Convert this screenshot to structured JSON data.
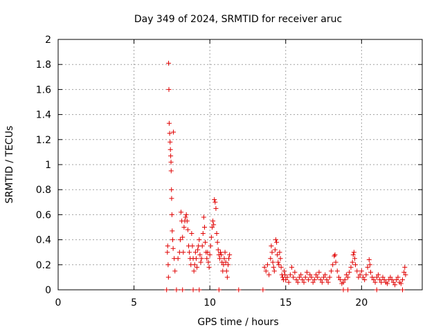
{
  "chart_data": {
    "type": "scatter",
    "title": "Day 349 of 2024, SRMTID for receiver aruc",
    "xlabel": "GPS time / hours",
    "ylabel": "SRMTID / TECUs",
    "xlim": [
      0,
      24
    ],
    "ylim": [
      0,
      2
    ],
    "xticks": [
      0,
      5,
      10,
      15,
      20
    ],
    "xtick_labels": [
      "0",
      "5",
      "10",
      "15",
      "20"
    ],
    "yticks": [
      0,
      0.2,
      0.4,
      0.6,
      0.8,
      1,
      1.2,
      1.4,
      1.6,
      1.8,
      2
    ],
    "ytick_labels": [
      "0",
      "0.2",
      "0.4",
      "0.6",
      "0.8",
      "1",
      "1.2",
      "1.4",
      "1.6",
      "1.8",
      "2"
    ],
    "grid": true,
    "marker": "plus",
    "series": [
      {
        "name": "SRMTID",
        "color": "#e00000",
        "points": [
          [
            7.15,
            0.0
          ],
          [
            7.2,
            0.3
          ],
          [
            7.22,
            0.35
          ],
          [
            7.25,
            0.2
          ],
          [
            7.27,
            0.1
          ],
          [
            7.28,
            1.81
          ],
          [
            7.3,
            1.6
          ],
          [
            7.32,
            1.33
          ],
          [
            7.35,
            1.25
          ],
          [
            7.38,
            1.18
          ],
          [
            7.4,
            1.12
          ],
          [
            7.42,
            1.07
          ],
          [
            7.44,
            1.02
          ],
          [
            7.45,
            0.95
          ],
          [
            7.47,
            0.8
          ],
          [
            7.48,
            0.73
          ],
          [
            7.5,
            0.6
          ],
          [
            7.52,
            0.47
          ],
          [
            7.55,
            0.4
          ],
          [
            7.58,
            0.33
          ],
          [
            7.6,
            1.26
          ],
          [
            7.65,
            0.25
          ],
          [
            7.7,
            0.15
          ],
          [
            7.8,
            0.0
          ],
          [
            7.9,
            0.25
          ],
          [
            8.0,
            0.3
          ],
          [
            8.05,
            0.4
          ],
          [
            8.1,
            0.62
          ],
          [
            8.15,
            0.55
          ],
          [
            8.2,
            0.42
          ],
          [
            8.25,
            0.3
          ],
          [
            8.3,
            0.5
          ],
          [
            8.35,
            0.55
          ],
          [
            8.4,
            0.58
          ],
          [
            8.45,
            0.6
          ],
          [
            8.5,
            0.55
          ],
          [
            8.55,
            0.48
          ],
          [
            8.6,
            0.35
          ],
          [
            8.65,
            0.3
          ],
          [
            8.7,
            0.25
          ],
          [
            8.75,
            0.2
          ],
          [
            8.8,
            0.45
          ],
          [
            8.85,
            0.35
          ],
          [
            8.9,
            0.25
          ],
          [
            8.95,
            0.15
          ],
          [
            9.0,
            0.2
          ],
          [
            9.05,
            0.3
          ],
          [
            9.1,
            0.25
          ],
          [
            9.15,
            0.18
          ],
          [
            9.2,
            0.32
          ],
          [
            9.25,
            0.35
          ],
          [
            9.3,
            0.4
          ],
          [
            9.35,
            0.28
          ],
          [
            9.4,
            0.22
          ],
          [
            9.45,
            0.25
          ],
          [
            9.5,
            0.35
          ],
          [
            9.55,
            0.45
          ],
          [
            9.6,
            0.58
          ],
          [
            9.65,
            0.5
          ],
          [
            9.7,
            0.38
          ],
          [
            9.75,
            0.3
          ],
          [
            9.8,
            0.25
          ],
          [
            9.85,
            0.3
          ],
          [
            9.9,
            0.22
          ],
          [
            9.95,
            0.18
          ],
          [
            10.0,
            0.28
          ],
          [
            10.05,
            0.35
          ],
          [
            10.1,
            0.42
          ],
          [
            10.15,
            0.5
          ],
          [
            10.2,
            0.55
          ],
          [
            10.25,
            0.52
          ],
          [
            10.3,
            0.72
          ],
          [
            10.35,
            0.7
          ],
          [
            10.4,
            0.65
          ],
          [
            10.45,
            0.45
          ],
          [
            10.5,
            0.38
          ],
          [
            10.55,
            0.32
          ],
          [
            10.6,
            0.28
          ],
          [
            10.65,
            0.25
          ],
          [
            10.7,
            0.3
          ],
          [
            10.75,
            0.28
          ],
          [
            10.8,
            0.22
          ],
          [
            10.85,
            0.15
          ],
          [
            10.9,
            0.2
          ],
          [
            10.95,
            0.25
          ],
          [
            11.0,
            0.3
          ],
          [
            11.05,
            0.22
          ],
          [
            11.1,
            0.15
          ],
          [
            11.15,
            0.1
          ],
          [
            11.2,
            0.2
          ],
          [
            11.25,
            0.25
          ],
          [
            11.3,
            0.28
          ],
          [
            8.2,
            0.0
          ],
          [
            8.9,
            0.0
          ],
          [
            9.3,
            0.0
          ],
          [
            10.6,
            0.0
          ],
          [
            11.9,
            0.0
          ],
          [
            13.5,
            0.0
          ],
          [
            13.6,
            0.18
          ],
          [
            13.7,
            0.15
          ],
          [
            13.8,
            0.2
          ],
          [
            13.9,
            0.12
          ],
          [
            14.0,
            0.25
          ],
          [
            14.05,
            0.35
          ],
          [
            14.1,
            0.3
          ],
          [
            14.15,
            0.22
          ],
          [
            14.2,
            0.18
          ],
          [
            14.25,
            0.15
          ],
          [
            14.3,
            0.32
          ],
          [
            14.35,
            0.4
          ],
          [
            14.4,
            0.38
          ],
          [
            14.45,
            0.28
          ],
          [
            14.5,
            0.22
          ],
          [
            14.55,
            0.2
          ],
          [
            14.6,
            0.3
          ],
          [
            14.65,
            0.25
          ],
          [
            14.7,
            0.18
          ],
          [
            14.75,
            0.12
          ],
          [
            14.8,
            0.1
          ],
          [
            14.85,
            0.08
          ],
          [
            14.9,
            0.15
          ],
          [
            14.95,
            0.12
          ],
          [
            15.0,
            0.08
          ],
          [
            15.1,
            0.1
          ],
          [
            15.2,
            0.06
          ],
          [
            15.3,
            0.12
          ],
          [
            15.4,
            0.18
          ],
          [
            15.5,
            0.1
          ],
          [
            15.6,
            0.14
          ],
          [
            15.7,
            0.08
          ],
          [
            15.8,
            0.06
          ],
          [
            15.9,
            0.1
          ],
          [
            16.0,
            0.12
          ],
          [
            16.1,
            0.08
          ],
          [
            16.2,
            0.06
          ],
          [
            16.3,
            0.1
          ],
          [
            16.4,
            0.14
          ],
          [
            16.5,
            0.08
          ],
          [
            16.6,
            0.12
          ],
          [
            16.7,
            0.1
          ],
          [
            16.8,
            0.06
          ],
          [
            16.9,
            0.08
          ],
          [
            17.0,
            0.12
          ],
          [
            17.1,
            0.1
          ],
          [
            17.2,
            0.14
          ],
          [
            17.3,
            0.08
          ],
          [
            17.4,
            0.06
          ],
          [
            17.5,
            0.1
          ],
          [
            17.6,
            0.12
          ],
          [
            17.7,
            0.08
          ],
          [
            17.8,
            0.06
          ],
          [
            17.9,
            0.1
          ],
          [
            18.0,
            0.15
          ],
          [
            18.1,
            0.2
          ],
          [
            18.2,
            0.27
          ],
          [
            18.25,
            0.28
          ],
          [
            18.3,
            0.22
          ],
          [
            18.4,
            0.15
          ],
          [
            18.5,
            0.1
          ],
          [
            18.6,
            0.08
          ],
          [
            18.7,
            0.05
          ],
          [
            18.8,
            0.06
          ],
          [
            18.9,
            0.08
          ],
          [
            19.0,
            0.12
          ],
          [
            19.1,
            0.1
          ],
          [
            19.2,
            0.14
          ],
          [
            19.3,
            0.18
          ],
          [
            19.4,
            0.22
          ],
          [
            19.45,
            0.28
          ],
          [
            19.5,
            0.3
          ],
          [
            19.55,
            0.25
          ],
          [
            19.6,
            0.2
          ],
          [
            19.7,
            0.15
          ],
          [
            19.8,
            0.1
          ],
          [
            19.9,
            0.12
          ],
          [
            20.0,
            0.15
          ],
          [
            20.1,
            0.1
          ],
          [
            20.2,
            0.08
          ],
          [
            20.3,
            0.12
          ],
          [
            20.4,
            0.18
          ],
          [
            20.5,
            0.24
          ],
          [
            20.55,
            0.2
          ],
          [
            20.6,
            0.14
          ],
          [
            20.7,
            0.1
          ],
          [
            20.8,
            0.08
          ],
          [
            20.9,
            0.06
          ],
          [
            21.0,
            0.1
          ],
          [
            21.1,
            0.12
          ],
          [
            21.2,
            0.08
          ],
          [
            21.3,
            0.06
          ],
          [
            21.4,
            0.1
          ],
          [
            21.5,
            0.08
          ],
          [
            21.6,
            0.06
          ],
          [
            21.7,
            0.05
          ],
          [
            21.8,
            0.08
          ],
          [
            21.9,
            0.1
          ],
          [
            22.0,
            0.08
          ],
          [
            22.1,
            0.06
          ],
          [
            22.2,
            0.04
          ],
          [
            22.3,
            0.08
          ],
          [
            22.4,
            0.1
          ],
          [
            22.5,
            0.06
          ],
          [
            22.6,
            0.05
          ],
          [
            22.7,
            0.08
          ],
          [
            22.8,
            0.14
          ],
          [
            22.85,
            0.18
          ],
          [
            22.9,
            0.12
          ],
          [
            18.8,
            0.0
          ],
          [
            19.1,
            0.0
          ],
          [
            21.0,
            0.0
          ],
          [
            22.7,
            0.0
          ]
        ]
      }
    ]
  }
}
